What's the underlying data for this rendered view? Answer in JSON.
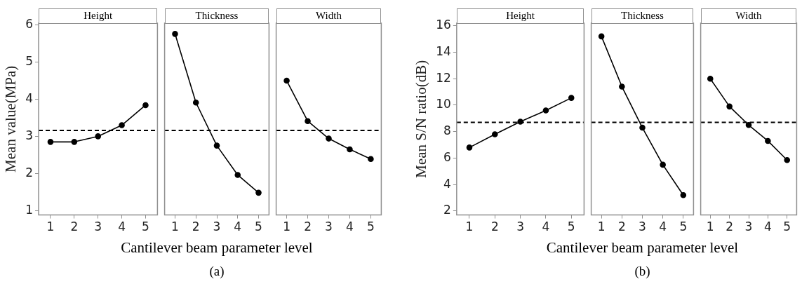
{
  "chart_data": [
    {
      "type": "line",
      "title": "Height",
      "categories": [
        "1",
        "2",
        "3",
        "4",
        "5"
      ],
      "values": [
        2.85,
        2.85,
        3.0,
        3.3,
        3.84
      ],
      "color": "#000000",
      "marker": "circle",
      "ylabel": "Mean value(MPa)",
      "ylim": [
        0.88,
        6.05
      ],
      "yticks": [
        1,
        2,
        3,
        4,
        5,
        6
      ],
      "grid": false,
      "ref_lines": [
        {
          "axis": "y",
          "value": 3.16,
          "line_style": "dashed",
          "color": "#000000"
        }
      ]
    },
    {
      "type": "line",
      "title": "Thickness",
      "categories": [
        "1",
        "2",
        "3",
        "4",
        "5"
      ],
      "values": [
        5.76,
        3.91,
        2.75,
        1.96,
        1.48
      ],
      "color": "#000000",
      "marker": "circle",
      "xlabel": "Cantilever beam parameter level",
      "annotations": [
        "(a)"
      ],
      "ylim": [
        0.88,
        6.05
      ],
      "tick_labels": "x",
      "grid": false,
      "ref_lines": [
        {
          "axis": "y",
          "value": 3.16,
          "line_style": "dashed",
          "color": "#000000"
        }
      ]
    },
    {
      "type": "line",
      "title": "Width",
      "categories": [
        "1",
        "2",
        "3",
        "4",
        "5"
      ],
      "values": [
        4.5,
        3.41,
        2.94,
        2.65,
        2.39
      ],
      "color": "#000000",
      "marker": "circle",
      "ylim": [
        0.88,
        6.05
      ],
      "tick_labels": "x",
      "grid": false,
      "ref_lines": [
        {
          "axis": "y",
          "value": 3.16,
          "line_style": "dashed",
          "color": "#000000"
        }
      ]
    },
    {
      "type": "line",
      "title": "Height",
      "categories": [
        "1",
        "2",
        "3",
        "4",
        "5"
      ],
      "values": [
        6.8,
        7.8,
        8.75,
        9.6,
        10.55
      ],
      "color": "#000000",
      "marker": "circle",
      "ylabel": "Mean S/N ratio(dB)",
      "ylim": [
        1.7,
        16.2
      ],
      "yticks": [
        2,
        4,
        6,
        8,
        10,
        12,
        14,
        16
      ],
      "grid": false,
      "ref_lines": [
        {
          "axis": "y",
          "value": 8.7,
          "line_style": "dashed",
          "color": "#000000"
        }
      ]
    },
    {
      "type": "line",
      "title": "Thickness",
      "categories": [
        "1",
        "2",
        "3",
        "4",
        "5"
      ],
      "values": [
        15.2,
        11.4,
        8.3,
        5.5,
        3.2
      ],
      "color": "#000000",
      "marker": "circle",
      "xlabel": "Cantilever beam parameter level",
      "annotations": [
        "(b)"
      ],
      "ylim": [
        1.7,
        16.2
      ],
      "tick_labels": "x",
      "grid": false,
      "ref_lines": [
        {
          "axis": "y",
          "value": 8.7,
          "line_style": "dashed",
          "color": "#000000"
        }
      ]
    },
    {
      "type": "line",
      "title": "Width",
      "categories": [
        "1",
        "2",
        "3",
        "4",
        "5"
      ],
      "values": [
        12.0,
        9.9,
        8.5,
        7.3,
        5.85
      ],
      "color": "#000000",
      "marker": "circle",
      "ylim": [
        1.7,
        16.2
      ],
      "tick_labels": "x",
      "grid": false,
      "ref_lines": [
        {
          "axis": "y",
          "value": 8.7,
          "line_style": "dashed",
          "color": "#000000"
        }
      ]
    }
  ]
}
